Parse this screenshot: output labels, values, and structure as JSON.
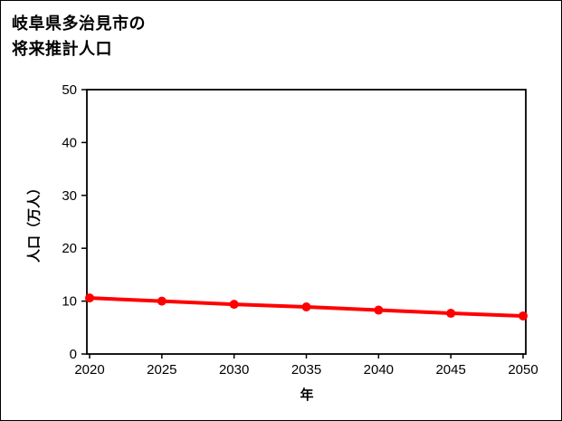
{
  "title": {
    "line1": "岐阜県多治見市の",
    "line2": "将来推計人口"
  },
  "chart_data": {
    "type": "line",
    "title": "岐阜県多治見市の将来推計人口",
    "x": [
      2020,
      2025,
      2030,
      2035,
      2040,
      2045,
      2050
    ],
    "series": [
      {
        "name": "将来推計人口",
        "values": [
          10.6,
          10.0,
          9.4,
          8.9,
          8.3,
          7.7,
          7.2
        ],
        "color": "#ff0000"
      }
    ],
    "xlabel": "年",
    "ylabel": "人口（万人）",
    "ylim": [
      0,
      50
    ],
    "yticks": [
      0,
      10,
      20,
      30,
      40,
      50
    ],
    "grid": false,
    "legend_position": "none"
  },
  "colors": {
    "line": "#ff0000",
    "axis": "#000000",
    "background": "#ffffff"
  }
}
